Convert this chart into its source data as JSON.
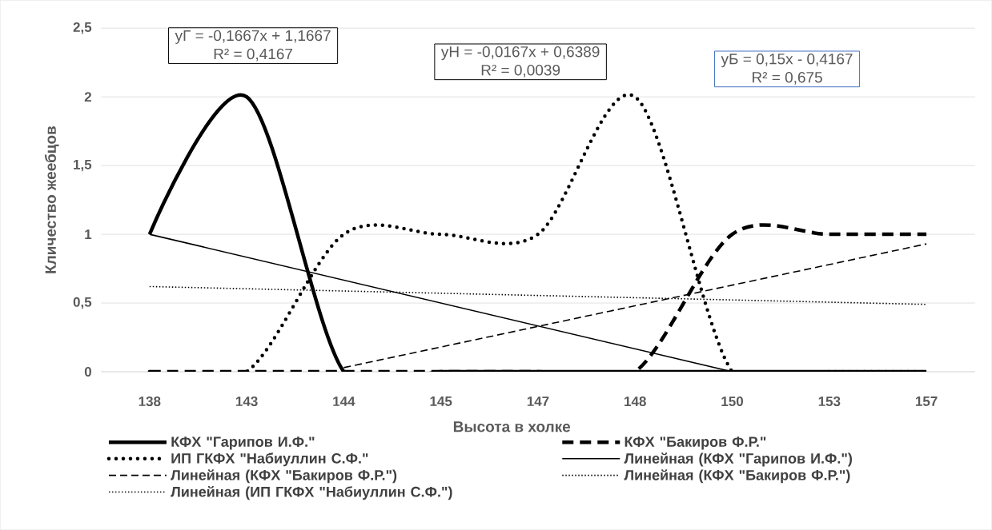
{
  "chart_data": {
    "type": "line",
    "xlabel": "Высота в холке",
    "ylabel": "Кличество жеебцов",
    "categories": [
      "138",
      "143",
      "144",
      "145",
      "147",
      "148",
      "150",
      "153",
      "157"
    ],
    "series": [
      {
        "name": "КФХ \"Гарипов И.Ф.\"",
        "color": "#000000",
        "line_style": "solid",
        "values": [
          1,
          2,
          0,
          0,
          0,
          0,
          0,
          0,
          0
        ]
      },
      {
        "name": "КФХ \"Бакиров Ф.Р.\"",
        "color": "#000000",
        "line_style": "dashed",
        "values": [
          0,
          0,
          0,
          0,
          0,
          0,
          1,
          1,
          1
        ]
      },
      {
        "name": "ИП ГКФХ \"Набиуллин С.Ф.\"",
        "color": "#000000",
        "line_style": "dotted",
        "values": [
          0,
          0,
          1,
          1,
          1,
          2,
          0,
          0,
          0
        ]
      },
      {
        "name": "Линейная (КФХ \"Гарипов И.Ф.\")",
        "color": "#000000",
        "line_style": "solid",
        "x": [
          "138",
          "150"
        ],
        "values": [
          1.0,
          0.0
        ]
      },
      {
        "name": "Линейная (КФХ \"Бакиров Ф.Р.\")",
        "color": "#000000",
        "line_style": "dashed",
        "x": [
          "144",
          "157"
        ],
        "values": [
          0.03,
          0.93
        ]
      },
      {
        "name": "Линейная (КФХ \"Бакиров Ф.Р.\")",
        "color": "#000000",
        "line_style": "dotted",
        "x": [
          "144",
          "157"
        ],
        "values": [
          null,
          null
        ]
      },
      {
        "name": "Линейная (ИП ГКФХ \"Набиуллин С.Ф.\")",
        "color": "#000000",
        "line_style": "dotted",
        "x": [
          "138",
          "157"
        ],
        "values": [
          0.62,
          0.49
        ]
      }
    ],
    "ylim": [
      0,
      2.5
    ],
    "yticks": [
      0,
      {
        "value": 0.5,
        "label": "0,5"
      },
      1,
      {
        "value": 1.5,
        "label": "1,5"
      },
      2,
      {
        "value": 2.5,
        "label": "2,5"
      }
    ],
    "grid": "y",
    "legend": "bottom",
    "annotations": [
      "yГ = -0,1667x + 1,1667",
      "R² = 0,4167",
      "yН = -0,0167x + 0,6389",
      "R² = 0,0039",
      "yБ = 0,15x - 0,4167",
      "R² = 0,675"
    ]
  }
}
